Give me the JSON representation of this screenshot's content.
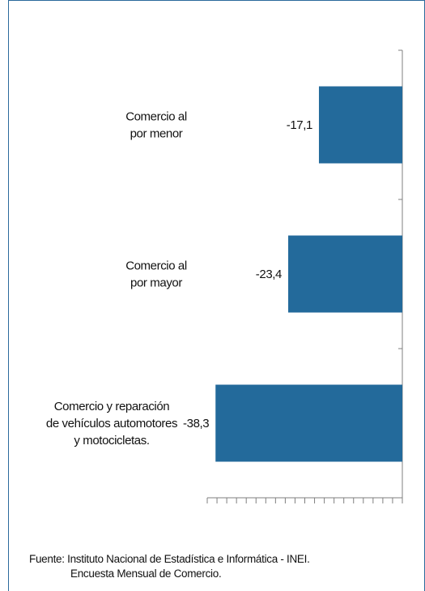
{
  "chart_data": {
    "type": "bar",
    "orientation": "horizontal",
    "categories": [
      [
        "Comercio al",
        "por menor"
      ],
      [
        "Comercio al",
        "por mayor"
      ],
      [
        "Comercio y reparación",
        "de vehículos automotores",
        "y motocicletas."
      ]
    ],
    "values": [
      -17.1,
      -23.4,
      -38.3
    ],
    "value_labels": [
      "-17,1",
      "-23,4",
      "-38,3"
    ],
    "xlim": [
      -40,
      0
    ],
    "bar_color": "#236a9b",
    "axis_color": "#7f7f7f",
    "grid": false,
    "legend": "none"
  },
  "source": {
    "line1": "Fuente: Instituto Nacional de Estadística e Informática - INEI.",
    "line2": "Encuesta Mensual de Comercio."
  }
}
